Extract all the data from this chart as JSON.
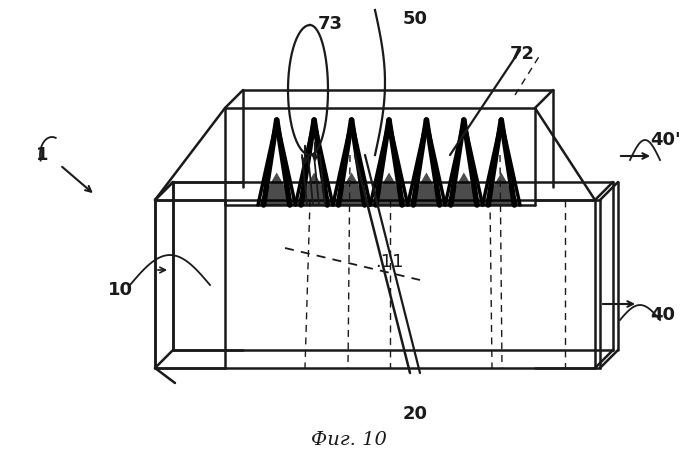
{
  "bg_color": "#ffffff",
  "line_color": "#1a1a1a",
  "fig_caption": "Фиг. 10",
  "lw_main": 1.8,
  "lw_thin": 1.0,
  "lw_wire": 1.3
}
